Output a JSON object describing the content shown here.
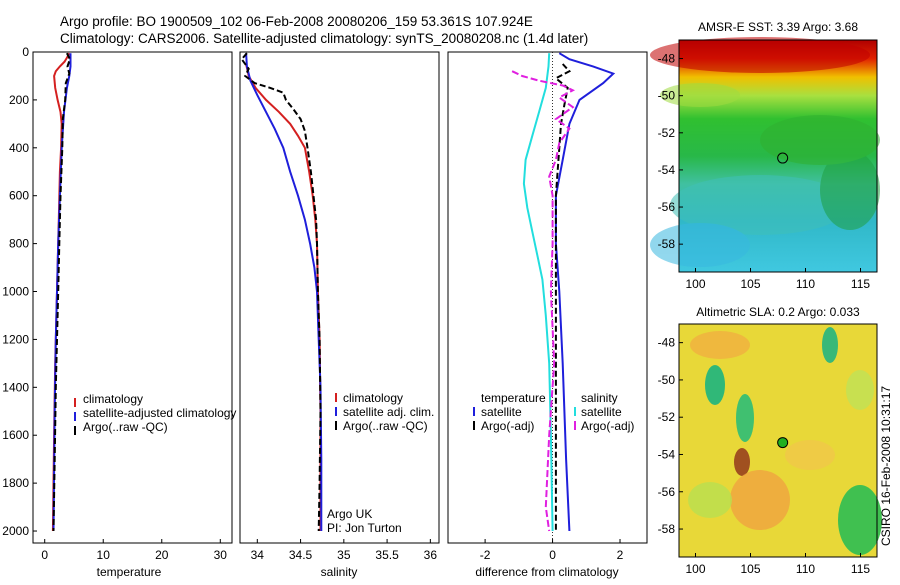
{
  "header": {
    "line1": "Argo profile: BO 1900509_102 06-Feb-2008 20080206_159 53.361S 107.924E",
    "line2": "Climatology: CARS2006. Satellite-adjusted climatology: synTS_20080208.nc (1.4d later)"
  },
  "colors": {
    "red": "#d42020",
    "blue": "#1f1fdb",
    "black": "#000000",
    "cyan": "#22dede",
    "magenta": "#e020e0"
  },
  "chart_data": [
    {
      "type": "line",
      "id": "temperature",
      "xlabel": "temperature",
      "ylabel": "",
      "xlim": [
        -2,
        32
      ],
      "ylim": [
        2050,
        0
      ],
      "xticks": [
        0,
        10,
        20,
        30
      ],
      "yticks": [
        0,
        200,
        400,
        600,
        800,
        1000,
        1200,
        1400,
        1600,
        1800,
        2000
      ],
      "series": [
        {
          "name": "climatology",
          "color": "red",
          "dash": "none",
          "points": [
            [
              4.2,
              5
            ],
            [
              3.9,
              20
            ],
            [
              3.4,
              40
            ],
            [
              2.6,
              60
            ],
            [
              1.9,
              80
            ],
            [
              1.6,
              100
            ],
            [
              1.8,
              150
            ],
            [
              2.2,
              200
            ],
            [
              2.7,
              250
            ],
            [
              2.9,
              300
            ],
            [
              2.8,
              400
            ],
            [
              2.6,
              500
            ],
            [
              2.4,
              700
            ],
            [
              2.2,
              900
            ],
            [
              2.0,
              1100
            ],
            [
              1.8,
              1300
            ],
            [
              1.6,
              1600
            ],
            [
              1.4,
              2000
            ]
          ]
        },
        {
          "name": "satellite-adjusted climatology",
          "color": "blue",
          "dash": "none",
          "points": [
            [
              4.4,
              5
            ],
            [
              4.4,
              60
            ],
            [
              4.2,
              100
            ],
            [
              3.8,
              150
            ],
            [
              3.3,
              250
            ],
            [
              2.9,
              400
            ],
            [
              2.6,
              600
            ],
            [
              2.3,
              800
            ],
            [
              2.1,
              1000
            ],
            [
              1.9,
              1200
            ],
            [
              1.7,
              1500
            ],
            [
              1.5,
              2000
            ]
          ]
        },
        {
          "name": "Argo(..raw -QC)",
          "color": "black",
          "dash": "6,3",
          "points": [
            [
              3.8,
              5
            ],
            [
              4.3,
              30
            ],
            [
              3.9,
              60
            ],
            [
              4.2,
              90
            ],
            [
              3.6,
              130
            ],
            [
              3.5,
              200
            ],
            [
              3.1,
              280
            ],
            [
              3.0,
              400
            ],
            [
              2.7,
              600
            ],
            [
              2.5,
              800
            ],
            [
              2.3,
              1000
            ],
            [
              2.1,
              1200
            ],
            [
              1.9,
              1400
            ],
            [
              1.7,
              1700
            ],
            [
              1.5,
              2000
            ]
          ]
        }
      ],
      "legend": {
        "position": "bottom-right",
        "entries": [
          "climatology",
          "satellite-adjusted climatology",
          "Argo(..raw -QC)"
        ]
      }
    },
    {
      "type": "line",
      "id": "salinity",
      "xlabel": "salinity",
      "ylabel": "",
      "xlim": [
        33.8,
        36.1
      ],
      "ylim": [
        2050,
        0
      ],
      "xticks": [
        34,
        34.5,
        35,
        35.5,
        36
      ],
      "yticks": [],
      "series": [
        {
          "name": "climatology",
          "color": "red",
          "dash": "none",
          "points": [
            [
              33.87,
              50
            ],
            [
              33.9,
              100
            ],
            [
              33.98,
              150
            ],
            [
              34.1,
              200
            ],
            [
              34.25,
              250
            ],
            [
              34.38,
              300
            ],
            [
              34.47,
              350
            ],
            [
              34.55,
              400
            ],
            [
              34.6,
              500
            ],
            [
              34.64,
              600
            ],
            [
              34.67,
              700
            ],
            [
              34.69,
              800
            ],
            [
              34.7,
              1000
            ],
            [
              34.72,
              1200
            ],
            [
              34.73,
              1500
            ],
            [
              34.73,
              2000
            ]
          ]
        },
        {
          "name": "satellite adj. clim.",
          "color": "blue",
          "dash": "none",
          "points": [
            [
              33.87,
              5
            ],
            [
              33.88,
              60
            ],
            [
              33.92,
              120
            ],
            [
              34.0,
              180
            ],
            [
              34.1,
              250
            ],
            [
              34.2,
              320
            ],
            [
              34.3,
              400
            ],
            [
              34.38,
              500
            ],
            [
              34.47,
              600
            ],
            [
              34.55,
              700
            ],
            [
              34.61,
              800
            ],
            [
              34.66,
              900
            ],
            [
              34.69,
              1000
            ],
            [
              34.71,
              1200
            ],
            [
              34.73,
              1400
            ],
            [
              34.74,
              1700
            ],
            [
              34.74,
              2000
            ]
          ]
        },
        {
          "name": "Argo(..raw -QC)",
          "color": "black",
          "dash": "6,3",
          "points": [
            [
              33.88,
              5
            ],
            [
              33.82,
              30
            ],
            [
              33.9,
              70
            ],
            [
              33.86,
              100
            ],
            [
              33.97,
              130
            ],
            [
              34.15,
              150
            ],
            [
              34.3,
              170
            ],
            [
              34.33,
              200
            ],
            [
              34.42,
              240
            ],
            [
              34.5,
              280
            ],
            [
              34.55,
              330
            ],
            [
              34.58,
              400
            ],
            [
              34.62,
              500
            ],
            [
              34.65,
              600
            ],
            [
              34.68,
              700
            ],
            [
              34.69,
              800
            ],
            [
              34.7,
              1000
            ],
            [
              34.72,
              1200
            ],
            [
              34.73,
              1500
            ],
            [
              34.72,
              1800
            ],
            [
              34.71,
              2000
            ]
          ]
        }
      ],
      "legend": {
        "position": "bottom-right",
        "entries": [
          "climatology",
          "satellite adj. clim.",
          "Argo(..raw -QC)"
        ]
      },
      "annotations": [
        "Argo UK",
        "PI: Jon Turton"
      ]
    },
    {
      "type": "line",
      "id": "difference",
      "xlabel": "difference from climatology",
      "ylabel": "",
      "xlim": [
        -3.1,
        2.8
      ],
      "ylim": [
        2050,
        0
      ],
      "xticks": [
        -2,
        0,
        2
      ],
      "yticks": [],
      "legend_groups": [
        {
          "title": "temperature",
          "entries": [
            "satellite",
            "Argo(-adj)"
          ]
        },
        {
          "title": "salinity",
          "entries": [
            "satellite",
            "Argo(-adj)"
          ]
        }
      ],
      "series": [
        {
          "name": "temperature satellite",
          "color": "blue",
          "dash": "none",
          "points": [
            [
              0.2,
              5
            ],
            [
              0.5,
              30
            ],
            [
              1.2,
              60
            ],
            [
              1.8,
              90
            ],
            [
              1.5,
              130
            ],
            [
              0.8,
              200
            ],
            [
              0.5,
              300
            ],
            [
              0.3,
              450
            ],
            [
              0.1,
              600
            ],
            [
              0.1,
              800
            ],
            [
              0.2,
              1000
            ],
            [
              0.3,
              1300
            ],
            [
              0.4,
              1700
            ],
            [
              0.5,
              2000
            ]
          ]
        },
        {
          "name": "temperature Argo(-adj)",
          "color": "black",
          "dash": "6,3",
          "points": [
            [
              0.3,
              50
            ],
            [
              0.5,
              80
            ],
            [
              0.1,
              110
            ],
            [
              0.45,
              150
            ],
            [
              0.35,
              220
            ],
            [
              0.25,
              300
            ],
            [
              0.2,
              400
            ],
            [
              0.15,
              500
            ],
            [
              0.1,
              600
            ],
            [
              0.1,
              800
            ],
            [
              0.1,
              1000
            ],
            [
              0.1,
              1300
            ],
            [
              0.1,
              1600
            ],
            [
              0.1,
              2000
            ]
          ]
        },
        {
          "name": "salinity satellite",
          "color": "cyan",
          "dash": "none",
          "points": [
            [
              -0.1,
              5
            ],
            [
              -0.12,
              60
            ],
            [
              -0.2,
              150
            ],
            [
              -0.4,
              250
            ],
            [
              -0.6,
              350
            ],
            [
              -0.8,
              450
            ],
            [
              -0.85,
              550
            ],
            [
              -0.75,
              650
            ],
            [
              -0.6,
              750
            ],
            [
              -0.45,
              850
            ],
            [
              -0.3,
              950
            ],
            [
              -0.2,
              1100
            ],
            [
              -0.1,
              1300
            ],
            [
              -0.05,
              1600
            ],
            [
              0,
              2000
            ]
          ]
        },
        {
          "name": "salinity Argo(-adj)",
          "color": "magenta",
          "dash": "7,3",
          "points": [
            [
              -1.2,
              80
            ],
            [
              -0.9,
              100
            ],
            [
              -0.4,
              120
            ],
            [
              0.3,
              140
            ],
            [
              0.6,
              160
            ],
            [
              0.2,
              190
            ],
            [
              0.6,
              230
            ],
            [
              0.1,
              280
            ],
            [
              0.5,
              320
            ],
            [
              0.2,
              380
            ],
            [
              0.1,
              450
            ],
            [
              -0.1,
              520
            ],
            [
              0,
              600
            ],
            [
              0,
              800
            ],
            [
              -0.05,
              1000
            ],
            [
              0.05,
              1300
            ],
            [
              -0.1,
              1600
            ],
            [
              -0.2,
              1900
            ],
            [
              -0.1,
              2000
            ]
          ]
        }
      ]
    },
    {
      "type": "heatmap",
      "id": "sst",
      "title": "AMSR-E SST: 3.39  Argo: 3.68",
      "xlim": [
        98.5,
        116.5
      ],
      "ylim": [
        -59.5,
        -47
      ],
      "xticks": [
        100,
        105,
        110,
        115
      ],
      "yticks": [
        -48,
        -50,
        -52,
        -54,
        -56,
        -58
      ],
      "marker": {
        "lon": 107.924,
        "lat": -53.361,
        "filled": false
      }
    },
    {
      "type": "heatmap",
      "id": "sla",
      "title": "Altimetric SLA: 0.2  Argo: 0.033",
      "xlim": [
        98.5,
        116.5
      ],
      "ylim": [
        -59.5,
        -47
      ],
      "xticks": [
        100,
        105,
        110,
        115
      ],
      "yticks": [
        -48,
        -50,
        -52,
        -54,
        -56,
        -58
      ],
      "marker": {
        "lon": 107.924,
        "lat": -53.361,
        "filled": true
      }
    }
  ],
  "footer": {
    "stamp": "CSIRO 16-Feb-2008 10:31:17"
  }
}
